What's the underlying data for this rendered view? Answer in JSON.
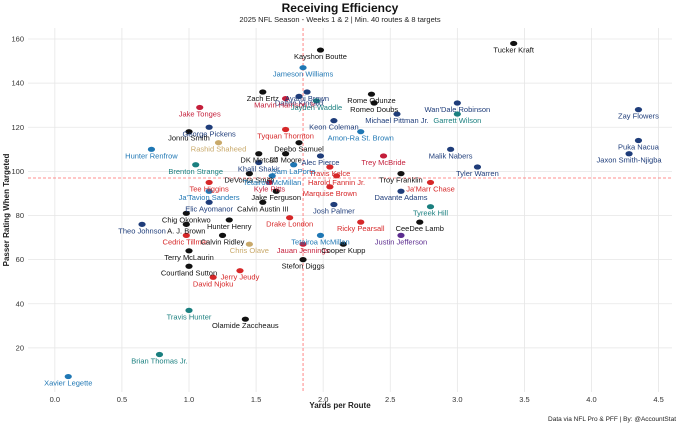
{
  "chart_data": {
    "type": "scatter",
    "title": "Receiving Efficiency",
    "subtitle": "2025 NFL Season - Weeks 1 & 2 | Min. 40 routes & 8 targets",
    "xlabel": "Yards per Route",
    "ylabel": "Passer Rating When Targeted",
    "caption": "Data via NFL Pro & PFF | By: @AccountStat",
    "xlim": [
      -0.2,
      4.6
    ],
    "ylim": [
      0,
      165
    ],
    "x_ticks": [
      "0.0",
      "0.5",
      "1.0",
      "1.5",
      "2.0",
      "2.5",
      "3.0",
      "3.5",
      "4.0",
      "4.5"
    ],
    "y_ticks": [
      "20",
      "40",
      "60",
      "80",
      "100",
      "120",
      "140",
      "160"
    ],
    "x_ref": 1.85,
    "y_ref": 97,
    "grid": true,
    "colors": {
      "ref_line": "#ff6b6b",
      "black": "#111111",
      "blue": "#1f77b4",
      "navy": "#1f3d7a",
      "red": "#d62728",
      "crimson": "#c41e3a",
      "gold": "#c9a96a",
      "teal": "#1a7f7f",
      "purple": "#5b2c8f",
      "darkred": "#8b1a1a"
    },
    "points": [
      {
        "name": "Tucker Kraft",
        "x": 3.42,
        "y": 158,
        "color": "#111111"
      },
      {
        "name": "Kayshon Boutte",
        "x": 1.98,
        "y": 155,
        "color": "#111111"
      },
      {
        "name": "Jameson Williams",
        "x": 1.85,
        "y": 147,
        "color": "#1f77b4"
      },
      {
        "name": "Rome Odunze",
        "x": 2.36,
        "y": 135,
        "color": "#111111"
      },
      {
        "name": "Zach Ertz",
        "x": 1.55,
        "y": 136,
        "color": "#111111"
      },
      {
        "name": "Dalton Kincaid",
        "x": 1.82,
        "y": 134,
        "color": "#1f3d7a"
      },
      {
        "name": "Ayami Brown",
        "x": 1.88,
        "y": 136,
        "color": "#1f3d7a"
      },
      {
        "name": "Marvin Harrison Jr.",
        "x": 1.72,
        "y": 133,
        "color": "#c41e3a"
      },
      {
        "name": "Jayden Waddle",
        "x": 1.95,
        "y": 132,
        "color": "#1a7f7f"
      },
      {
        "name": "Romeo Doubs",
        "x": 2.38,
        "y": 131,
        "color": "#111111"
      },
      {
        "name": "Wan'Dale Robinson",
        "x": 3.0,
        "y": 131,
        "color": "#1f3d7a"
      },
      {
        "name": "Jake Tonges",
        "x": 1.08,
        "y": 129,
        "color": "#c41e3a"
      },
      {
        "name": "Michael Pittman Jr.",
        "x": 2.55,
        "y": 126,
        "color": "#1f3d7a"
      },
      {
        "name": "Garrett Wilson",
        "x": 3.0,
        "y": 126,
        "color": "#1a7f7f"
      },
      {
        "name": "Zay Flowers",
        "x": 4.35,
        "y": 128,
        "color": "#1f3d7a"
      },
      {
        "name": "Keon Coleman",
        "x": 2.08,
        "y": 123,
        "color": "#1f3d7a"
      },
      {
        "name": "George Pickens",
        "x": 1.15,
        "y": 120,
        "color": "#1f3d7a"
      },
      {
        "name": "Tyquan Thornton",
        "x": 1.72,
        "y": 119,
        "color": "#d62728"
      },
      {
        "name": "Amon-Ra St. Brown",
        "x": 2.28,
        "y": 118,
        "color": "#1f77b4"
      },
      {
        "name": "Jonnu Smith",
        "x": 1.0,
        "y": 118,
        "color": "#111111"
      },
      {
        "name": "Puka Nacua",
        "x": 4.35,
        "y": 114,
        "color": "#1f3d7a"
      },
      {
        "name": "Rashid Shaheed",
        "x": 1.22,
        "y": 113,
        "color": "#c9a96a"
      },
      {
        "name": "Deebo Samuel",
        "x": 1.82,
        "y": 113,
        "color": "#111111"
      },
      {
        "name": "Hunter Renfrow",
        "x": 0.72,
        "y": 110,
        "color": "#1f77b4"
      },
      {
        "name": "Malik Nabers",
        "x": 2.95,
        "y": 110,
        "color": "#1f3d7a"
      },
      {
        "name": "Jaxon Smith-Njigba",
        "x": 4.28,
        "y": 108,
        "color": "#1f3d7a"
      },
      {
        "name": "DK Metcalf",
        "x": 1.52,
        "y": 108,
        "color": "#111111"
      },
      {
        "name": "DJ Moore",
        "x": 1.72,
        "y": 108,
        "color": "#111111"
      },
      {
        "name": "Alec Pierce",
        "x": 1.98,
        "y": 107,
        "color": "#1f3d7a"
      },
      {
        "name": "Trey McBride",
        "x": 2.45,
        "y": 107,
        "color": "#c41e3a"
      },
      {
        "name": "Khalil Shakir",
        "x": 1.52,
        "y": 104,
        "color": "#1f3d7a"
      },
      {
        "name": "Brenton Strange",
        "x": 1.05,
        "y": 103,
        "color": "#1a7f7f"
      },
      {
        "name": "Sam LaPorta",
        "x": 1.78,
        "y": 103,
        "color": "#1f77b4"
      },
      {
        "name": "Travis Kelce",
        "x": 2.05,
        "y": 102,
        "color": "#d62728"
      },
      {
        "name": "Tyler Warren",
        "x": 3.15,
        "y": 102,
        "color": "#1f3d7a"
      },
      {
        "name": "DeVonta Smith",
        "x": 1.45,
        "y": 99,
        "color": "#111111"
      },
      {
        "name": "Tetairoa McMillan",
        "x": 1.62,
        "y": 98,
        "color": "#1f77b4"
      },
      {
        "name": "Harold Fannin Jr.",
        "x": 2.1,
        "y": 98,
        "color": "#d62728"
      },
      {
        "name": "Troy Franklin",
        "x": 2.58,
        "y": 99,
        "color": "#111111"
      },
      {
        "name": "Ja'Marr Chase",
        "x": 2.8,
        "y": 95,
        "color": "#d62728"
      },
      {
        "name": "Tee Higgins",
        "x": 1.15,
        "y": 95,
        "color": "#d62728"
      },
      {
        "name": "Kyle Pitts",
        "x": 1.6,
        "y": 95,
        "color": "#c41e3a"
      },
      {
        "name": "Marquise Brown",
        "x": 2.05,
        "y": 93,
        "color": "#d62728"
      },
      {
        "name": "Ja'Tavion Sanders",
        "x": 1.15,
        "y": 91,
        "color": "#1f77b4"
      },
      {
        "name": "Jake Ferguson",
        "x": 1.65,
        "y": 91,
        "color": "#111111"
      },
      {
        "name": "Davante Adams",
        "x": 2.58,
        "y": 91,
        "color": "#1f3d7a"
      },
      {
        "name": "Elic Ayomanor",
        "x": 1.15,
        "y": 86,
        "color": "#1f3d7a"
      },
      {
        "name": "Calvin Austin III",
        "x": 1.55,
        "y": 86,
        "color": "#111111"
      },
      {
        "name": "Josh Palmer",
        "x": 2.08,
        "y": 85,
        "color": "#1f3d7a"
      },
      {
        "name": "Tyreek Hill",
        "x": 2.8,
        "y": 84,
        "color": "#1a7f7f"
      },
      {
        "name": "Chig Okonkwo",
        "x": 0.98,
        "y": 81,
        "color": "#111111"
      },
      {
        "name": "Drake London",
        "x": 1.75,
        "y": 79,
        "color": "#d62728"
      },
      {
        "name": "Theo Johnson",
        "x": 0.65,
        "y": 76,
        "color": "#1f3d7a"
      },
      {
        "name": "A. J. Brown",
        "x": 0.98,
        "y": 76,
        "color": "#111111"
      },
      {
        "name": "Hunter Henry",
        "x": 1.3,
        "y": 78,
        "color": "#111111"
      },
      {
        "name": "Ricky Pearsall",
        "x": 2.28,
        "y": 77,
        "color": "#d62728"
      },
      {
        "name": "CeeDee Lamb",
        "x": 2.72,
        "y": 77,
        "color": "#111111"
      },
      {
        "name": "Cedric Tillman",
        "x": 0.98,
        "y": 71,
        "color": "#d62728"
      },
      {
        "name": "Calvin Ridley",
        "x": 1.25,
        "y": 71,
        "color": "#111111"
      },
      {
        "name": "Tetairoa McMillan",
        "x": 1.98,
        "y": 71,
        "color": "#1f77b4"
      },
      {
        "name": "Justin Jefferson",
        "x": 2.58,
        "y": 71,
        "color": "#5b2c8f"
      },
      {
        "name": "Chris Olave",
        "x": 1.45,
        "y": 67,
        "color": "#c9a96a"
      },
      {
        "name": "Jauan Jennings",
        "x": 1.85,
        "y": 67,
        "color": "#c41e3a"
      },
      {
        "name": "Cooper Kupp",
        "x": 2.15,
        "y": 67,
        "color": "#111111"
      },
      {
        "name": "Terry McLaurin",
        "x": 1.0,
        "y": 64,
        "color": "#111111"
      },
      {
        "name": "Stefon Diggs",
        "x": 1.85,
        "y": 60,
        "color": "#111111"
      },
      {
        "name": "Courtland Sutton",
        "x": 1.0,
        "y": 57,
        "color": "#111111"
      },
      {
        "name": "Jerry Jeudy",
        "x": 1.38,
        "y": 55,
        "color": "#d62728"
      },
      {
        "name": "David Njoku",
        "x": 1.18,
        "y": 52,
        "color": "#d62728"
      },
      {
        "name": "Travis Hunter",
        "x": 1.0,
        "y": 37,
        "color": "#1a7f7f"
      },
      {
        "name": "Olamide Zaccheaus",
        "x": 1.42,
        "y": 33,
        "color": "#111111"
      },
      {
        "name": "Brian Thomas Jr.",
        "x": 0.78,
        "y": 17,
        "color": "#1a7f7f"
      },
      {
        "name": "Xavier Legette",
        "x": 0.1,
        "y": 7,
        "color": "#1f77b4"
      }
    ]
  }
}
